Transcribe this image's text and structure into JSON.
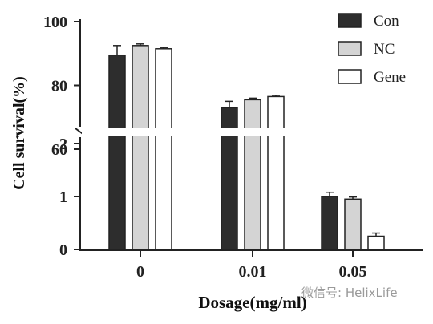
{
  "chart_data": {
    "type": "bar",
    "categories": [
      "0",
      "0.01",
      "0.05"
    ],
    "series": [
      {
        "name": "Con",
        "values": [
          89.5,
          73,
          1.0
        ],
        "errors": [
          3,
          2,
          0.08
        ],
        "color": "#2d2d2d"
      },
      {
        "name": "NC",
        "values": [
          92.5,
          75.5,
          0.95
        ],
        "errors": [
          0.5,
          0.5,
          0.04
        ],
        "color": "#d4d4d4"
      },
      {
        "name": "Gene",
        "values": [
          91.5,
          76.5,
          0.25
        ],
        "errors": [
          0.4,
          0.4,
          0.06
        ],
        "color": "#ffffff"
      }
    ],
    "ylabel": "Cell survival(%)",
    "xlabel": "Dosage(mg/ml)",
    "y_axis_break": true,
    "lower_segment": {
      "ylim": [
        0,
        2
      ],
      "ticks": [
        "0",
        "1",
        "2"
      ]
    },
    "upper_segment": {
      "ylim": [
        60,
        100
      ],
      "ticks": [
        "60",
        "80",
        "100"
      ]
    },
    "legend_position": "top-right",
    "grid": false
  },
  "watermark": "微信号: HelixLife"
}
